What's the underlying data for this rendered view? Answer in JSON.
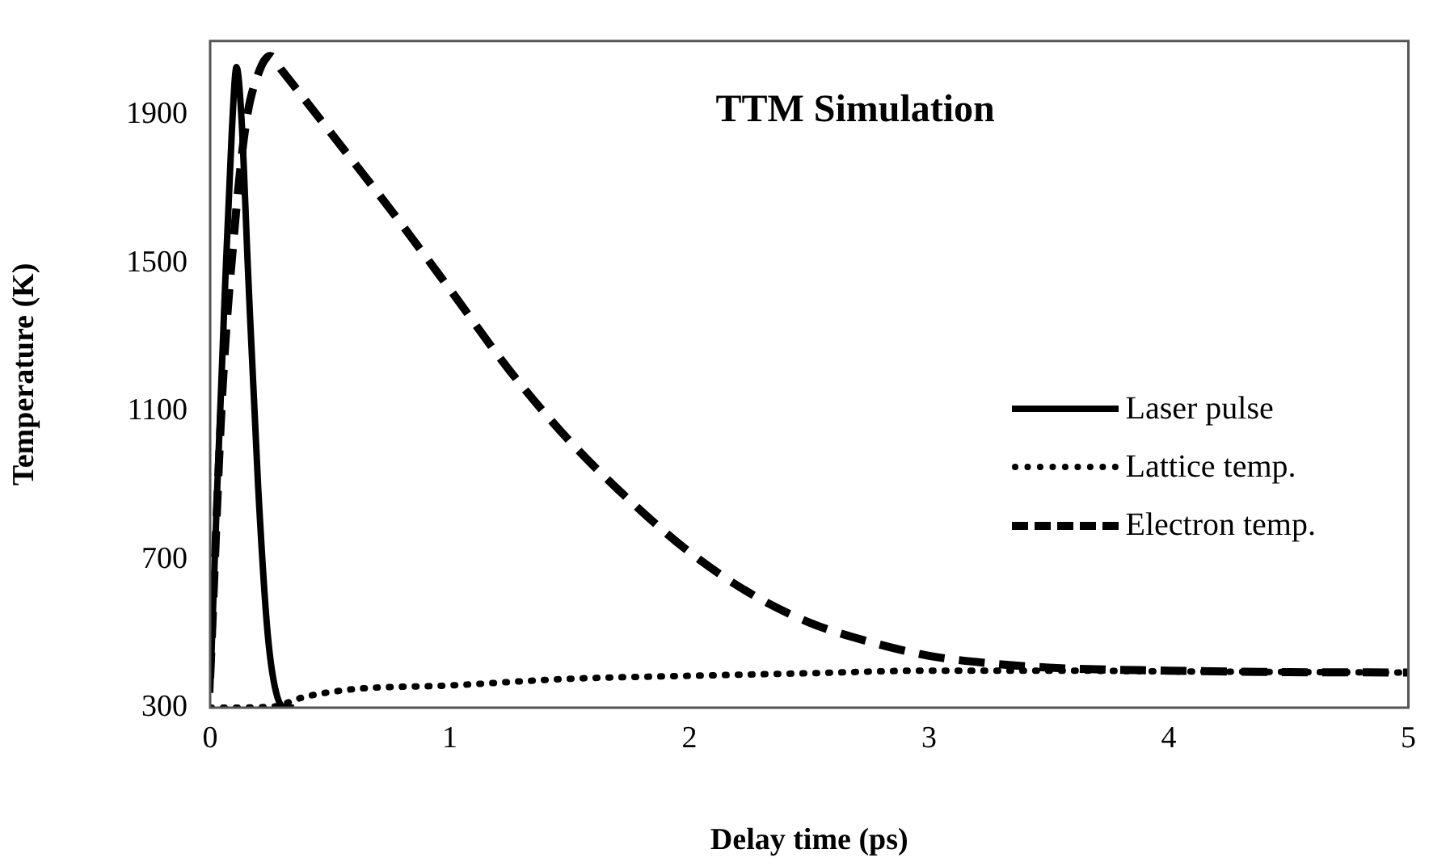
{
  "chart_data": {
    "type": "line",
    "title": "TTM Simulation",
    "xlabel": "Delay time (ps)",
    "ylabel": "Temperature (K)",
    "xlim": [
      0,
      5
    ],
    "xticks": [
      0,
      1,
      2,
      3,
      4,
      5
    ],
    "ylim": [
      300,
      2100
    ],
    "yticks": [
      300,
      700,
      1100,
      1500,
      1900
    ],
    "grid": false,
    "legend": "right",
    "marker": "none",
    "series": [
      {
        "name": "Laser pulse",
        "color": "#000000",
        "line_style": "solid",
        "x": [
          0,
          0.03,
          0.06,
          0.09,
          0.11,
          0.13,
          0.16,
          0.2,
          0.24,
          0.28,
          0.32,
          0.35
        ],
        "values": [
          340,
          900,
          1400,
          1850,
          2030,
          1900,
          1450,
          900,
          500,
          330,
          300,
          300
        ]
      },
      {
        "name": "Lattice temp.",
        "color": "#000000",
        "line_style": "dotted",
        "x": [
          0,
          0.25,
          0.4,
          0.6,
          1,
          1.5,
          2,
          2.5,
          3,
          3.5,
          4,
          5
        ],
        "values": [
          300,
          302,
          330,
          350,
          360,
          378,
          386,
          393,
          400,
          400,
          398,
          395
        ]
      },
      {
        "name": "Electron temp.",
        "color": "#000000",
        "line_style": "dashed",
        "x": [
          0,
          0.05,
          0.1,
          0.15,
          0.2,
          0.25,
          0.3,
          0.5,
          0.75,
          1,
          1.25,
          1.5,
          1.75,
          2,
          2.25,
          2.5,
          2.75,
          3,
          3.25,
          3.5,
          4,
          4.5,
          5
        ],
        "values": [
          380,
          1140,
          1580,
          1880,
          2010,
          2060,
          2020,
          1855,
          1647,
          1430,
          1210,
          1020,
          860,
          720,
          610,
          530,
          478,
          440,
          420,
          408,
          400,
          396,
          395
        ]
      }
    ]
  }
}
